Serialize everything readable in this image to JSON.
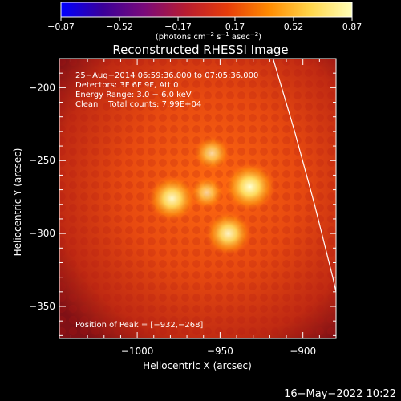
{
  "chart_data": {
    "type": "heatmap",
    "title": "Reconstructed RHESSI Image",
    "xlabel": "Heliocentric X (arcsec)",
    "ylabel": "Heliocentric Y (arcsec)",
    "xlim": [
      -1047,
      -880
    ],
    "ylim": [
      -372,
      -180
    ],
    "x_ticks": [
      -1000,
      -950,
      -900
    ],
    "x_tick_labels": [
      "−1000",
      "−950",
      "−900"
    ],
    "y_ticks": [
      -200,
      -250,
      -300,
      -350
    ],
    "y_tick_labels": [
      "−200",
      "−250",
      "−300",
      "−350"
    ],
    "colorbar": {
      "ticks": [
        -0.87,
        -0.52,
        -0.17,
        0.17,
        0.52,
        0.87
      ],
      "tick_labels": [
        "−0.87",
        "−0.52",
        "−0.17",
        "0.17",
        "0.52",
        "0.87"
      ],
      "units_parts": [
        "(photons cm",
        "−2",
        " s",
        "−1",
        " asec",
        "−2",
        ")"
      ],
      "colors": [
        "#0000ff",
        "#3a0099",
        "#7a0a7a",
        "#b81c30",
        "#e63c0a",
        "#ff8a00",
        "#ffd64a",
        "#ffffb8"
      ]
    },
    "info_lines": [
      "25−Aug−2014 06:59:36.000 to 07:05:36.000",
      "Detectors: 3F 6F 9F, Att 0",
      "Energy Range: 3.0 − 6.0 keV",
      "Clean    Total counts: 7.99E+04"
    ],
    "peak_label": "Position of Peak = [−932,−268]",
    "sources": [
      {
        "x": -979,
        "y": -276,
        "intensity": 0.8
      },
      {
        "x": -932,
        "y": -268,
        "intensity": 0.87
      },
      {
        "x": -945,
        "y": -300,
        "intensity": 0.75
      },
      {
        "x": -955,
        "y": -245,
        "intensity": 0.5
      },
      {
        "x": -958,
        "y": -272,
        "intensity": 0.45
      }
    ],
    "limb_curve": [
      [
        -918,
        -180
      ],
      [
        -905,
        -230
      ],
      [
        -893,
        -280
      ],
      [
        -882,
        -330
      ],
      [
        -874,
        -370
      ]
    ],
    "limb_color": "#ffffff",
    "background_color": "#000000"
  },
  "footer": {
    "date": "16−May−2022 10:22"
  }
}
